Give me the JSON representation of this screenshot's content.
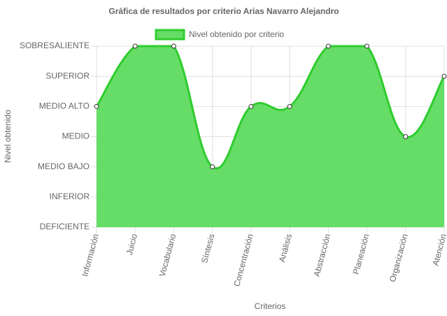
{
  "chart_data": {
    "type": "line",
    "title": "Gráfica de resultados por criterio Arias Navarro Alejandro",
    "x_label": "Criterios",
    "y_label": "Nivel obtenido",
    "categories": [
      "Información",
      "Juicio",
      "Vocabulario",
      "Síntesis",
      "Concentración",
      "Análisis",
      "Abstracción",
      "Planeación",
      "Organización",
      "Atención"
    ],
    "series": [
      {
        "name": "Nivel obtenido por criterio",
        "color": "#2ecc2e",
        "fill": "#66dd66",
        "values": [
          4,
          6,
          6,
          2,
          4,
          4,
          6,
          6,
          3,
          5
        ]
      }
    ],
    "ylim": [
      0,
      6
    ],
    "yticks": [
      {
        "value": 0,
        "label": "DEFICIENTE"
      },
      {
        "value": 1,
        "label": "INFERIOR"
      },
      {
        "value": 2,
        "label": "MEDIO BAJO"
      },
      {
        "value": 3,
        "label": "MEDIO"
      },
      {
        "value": 4,
        "label": "MEDIO ALTO"
      },
      {
        "value": 5,
        "label": "SUPERIOR"
      },
      {
        "value": 6,
        "label": "SOBRESALIENTE"
      }
    ],
    "grid": true,
    "legend": "top"
  }
}
